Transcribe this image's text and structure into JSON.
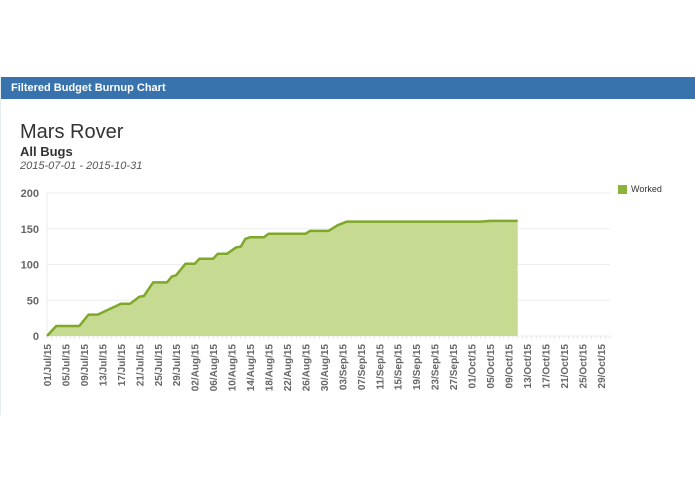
{
  "panel": {
    "header": "Filtered Budget Burnup Chart",
    "title": "Mars Rover",
    "subtitle": "All Bugs",
    "date_range": "2015-07-01 - 2015-10-31"
  },
  "colors": {
    "header_bg": "#3873ad",
    "series_line": "#7fa82a",
    "series_fill": "#c6da92",
    "legend_swatch": "#8db33a",
    "grid": "#eeeeee",
    "axis_text": "#666666"
  },
  "chart_data": {
    "type": "area",
    "title": "Mars Rover",
    "subtitle": "All Bugs",
    "xlabel": "",
    "ylabel": "",
    "ylim": [
      0,
      200
    ],
    "yticks": [
      0,
      50,
      100,
      150,
      200
    ],
    "grid": true,
    "legend_position": "right-top",
    "x_tick_labels": [
      "01/Jul/15",
      "05/Jul/15",
      "09/Jul/15",
      "13/Jul/15",
      "17/Jul/15",
      "21/Jul/15",
      "25/Jul/15",
      "29/Jul/15",
      "02/Aug/15",
      "06/Aug/15",
      "10/Aug/15",
      "14/Aug/15",
      "18/Aug/15",
      "22/Aug/15",
      "26/Aug/15",
      "30/Aug/15",
      "03/Sep/15",
      "07/Sep/15",
      "11/Sep/15",
      "15/Sep/15",
      "19/Sep/15",
      "23/Sep/15",
      "27/Sep/15",
      "01/Oct/15",
      "05/Oct/15",
      "09/Oct/15",
      "13/Oct/15",
      "17/Oct/15",
      "21/Oct/15",
      "25/Oct/15",
      "29/Oct/15"
    ],
    "x_range": [
      "2015-07-01",
      "2015-10-31"
    ],
    "series": [
      {
        "name": "Worked",
        "points": [
          {
            "day": 0,
            "value": 0
          },
          {
            "day": 2,
            "value": 14
          },
          {
            "day": 7,
            "value": 14
          },
          {
            "day": 9,
            "value": 30
          },
          {
            "day": 11,
            "value": 30
          },
          {
            "day": 13,
            "value": 36
          },
          {
            "day": 15,
            "value": 42
          },
          {
            "day": 16,
            "value": 45
          },
          {
            "day": 18,
            "value": 45
          },
          {
            "day": 20,
            "value": 55
          },
          {
            "day": 21,
            "value": 56
          },
          {
            "day": 23,
            "value": 75
          },
          {
            "day": 26,
            "value": 75
          },
          {
            "day": 27,
            "value": 83
          },
          {
            "day": 28,
            "value": 85
          },
          {
            "day": 30,
            "value": 101
          },
          {
            "day": 32,
            "value": 101
          },
          {
            "day": 33,
            "value": 108
          },
          {
            "day": 36,
            "value": 108
          },
          {
            "day": 37,
            "value": 115
          },
          {
            "day": 39,
            "value": 115
          },
          {
            "day": 41,
            "value": 124
          },
          {
            "day": 42,
            "value": 125
          },
          {
            "day": 43,
            "value": 136
          },
          {
            "day": 44,
            "value": 138
          },
          {
            "day": 47,
            "value": 138
          },
          {
            "day": 48,
            "value": 143
          },
          {
            "day": 56,
            "value": 143
          },
          {
            "day": 57,
            "value": 147
          },
          {
            "day": 61,
            "value": 147
          },
          {
            "day": 63,
            "value": 155
          },
          {
            "day": 65,
            "value": 160
          },
          {
            "day": 94,
            "value": 160
          },
          {
            "day": 96,
            "value": 161
          },
          {
            "day": 102,
            "value": 161
          }
        ]
      }
    ],
    "legend": [
      "Worked"
    ]
  }
}
